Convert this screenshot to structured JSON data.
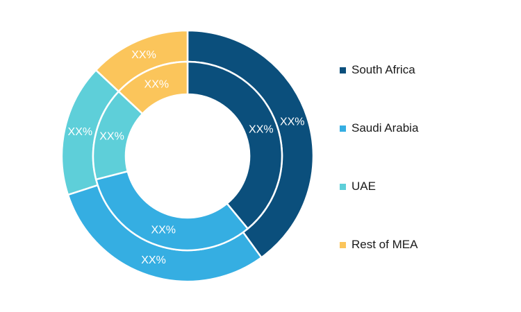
{
  "chart_data": {
    "type": "pie",
    "style": "nested-donut",
    "categories": [
      "South Africa",
      "Saudi Arabia",
      "UAE",
      "Rest of MEA"
    ],
    "colors": [
      "#0b4f7c",
      "#35aee2",
      "#5ecfd9",
      "#fbc55b"
    ],
    "series": [
      {
        "ring": "outer",
        "values": [
          40,
          30,
          17,
          13
        ],
        "labels": [
          "XX%",
          "XX%",
          "XX%",
          "XX%"
        ]
      },
      {
        "ring": "inner",
        "values": [
          39,
          32,
          16,
          13
        ],
        "labels": [
          "XX%",
          "XX%",
          "XX%",
          "XX%"
        ]
      }
    ],
    "legend_position": "right",
    "start_angle": "top",
    "direction": "clockwise"
  }
}
